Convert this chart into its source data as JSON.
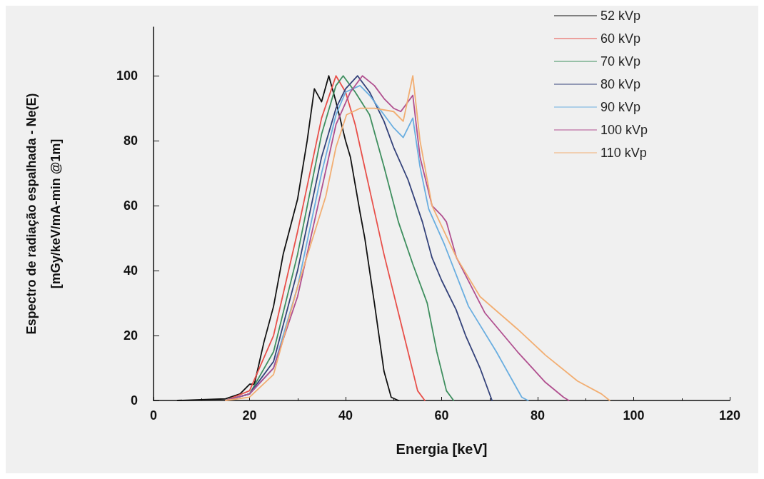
{
  "chart_data": {
    "type": "line",
    "xlabel": "Energia [keV]",
    "ylabel": "Espectro de radiação espalhada - Ne(E)\n[mGy/keV/mA-min @1m]",
    "xlim": [
      0,
      120
    ],
    "xticks": [
      0,
      20,
      40,
      60,
      80,
      100,
      120
    ],
    "ylim": [
      0,
      115
    ],
    "yticks": [
      0,
      20,
      40,
      60,
      80,
      100
    ],
    "grid": false,
    "legend": "top right",
    "marker": "none",
    "line_style": "solid",
    "series": [
      {
        "name": "52 kVp",
        "color": "#111111",
        "x": [
          5,
          15,
          18,
          20,
          21,
          23,
          25,
          27,
          30,
          32,
          33.5,
          35,
          36.5,
          38,
          40,
          41,
          43,
          44,
          46,
          48,
          49.5,
          51
        ],
        "values": [
          0,
          0.5,
          2,
          5,
          5,
          18,
          29,
          45,
          62,
          80,
          96,
          92,
          100,
          92,
          80,
          75,
          58,
          50,
          30,
          9,
          1,
          0
        ]
      },
      {
        "name": "60 kVp",
        "color": "#e8504a",
        "x": [
          15,
          20,
          25,
          30,
          35,
          38,
          40,
          42,
          45,
          48,
          51,
          53,
          55,
          56.5
        ],
        "values": [
          0,
          3,
          20,
          52,
          87,
          100,
          95,
          85,
          65,
          45,
          27,
          15,
          3,
          0
        ]
      },
      {
        "name": "70 kVp",
        "color": "#3f8f5f",
        "x": [
          15,
          20,
          25,
          30,
          35,
          38,
          39.5,
          42,
          45,
          48,
          51,
          54,
          57,
          59,
          61,
          62.5
        ],
        "values": [
          0,
          2,
          15,
          45,
          82,
          97,
          100,
          95,
          88,
          72,
          55,
          42,
          30,
          15,
          3,
          0
        ]
      },
      {
        "name": "80 kVp",
        "color": "#34427a",
        "x": [
          15,
          20,
          25,
          30,
          35,
          38,
          40,
          42.5,
          45,
          48,
          50,
          53,
          56,
          58,
          60,
          63,
          65,
          68,
          70.5
        ],
        "values": [
          0,
          2,
          12,
          40,
          75,
          90,
          96,
          100,
          95,
          86,
          78,
          68,
          55,
          44,
          37,
          28,
          20,
          10,
          0
        ]
      },
      {
        "name": "90 kVp",
        "color": "#6aaee0",
        "x": [
          15,
          20,
          25,
          30,
          35,
          38,
          40,
          43,
          45,
          48,
          50,
          52,
          54,
          55.5,
          57.3,
          60.6,
          65.6,
          71.4,
          76.7,
          78
        ],
        "values": [
          0,
          2,
          10,
          35,
          70,
          88,
          95,
          97,
          94,
          88,
          84,
          81,
          87,
          72,
          59,
          48,
          29,
          15,
          1,
          0
        ]
      },
      {
        "name": "100 kVp",
        "color": "#b04f8f",
        "x": [
          15,
          20,
          25,
          30,
          35,
          38,
          41,
          43.5,
          46,
          48,
          50,
          51.5,
          54,
          55.5,
          58,
          60,
          61,
          63.1,
          69,
          75.8,
          81.6,
          85.4,
          86.5
        ],
        "values": [
          0,
          2,
          10,
          32,
          65,
          85,
          95,
          100,
          97,
          93,
          90,
          89,
          94,
          75,
          60,
          57,
          55,
          44,
          27,
          15,
          5.6,
          1,
          0
        ]
      },
      {
        "name": "110 kVp",
        "color": "#f2ae72",
        "x": [
          15,
          20,
          25,
          30,
          35.9,
          38,
          40.2,
          43,
          46,
          50,
          52,
          54,
          55.5,
          58,
          63.1,
          68,
          75.8,
          81.6,
          88.3,
          93.3,
          95
        ],
        "values": [
          0,
          1,
          8,
          35,
          63,
          78,
          88,
          90,
          90,
          89,
          86,
          100,
          80,
          60,
          44,
          32,
          22,
          14,
          6,
          2,
          0
        ]
      }
    ]
  }
}
